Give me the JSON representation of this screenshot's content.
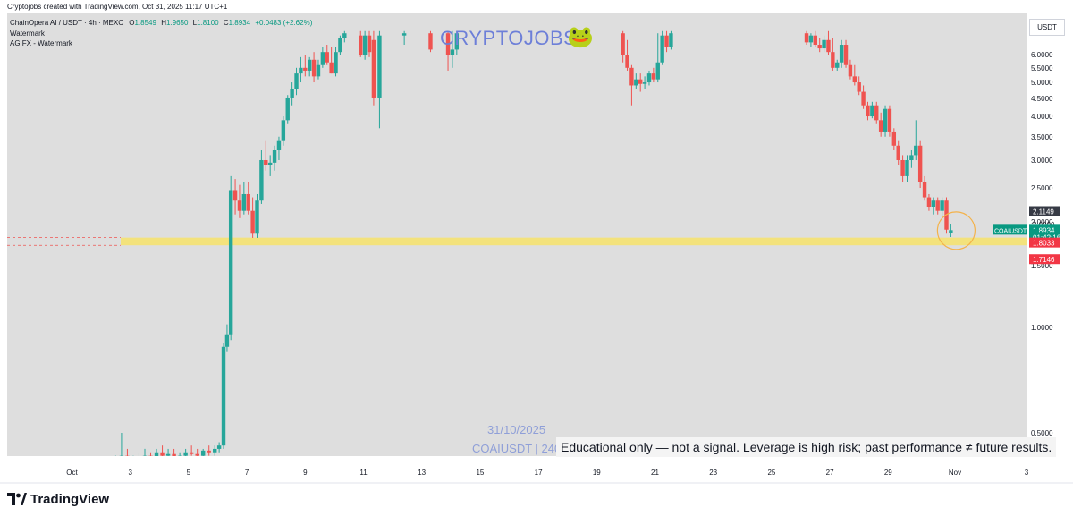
{
  "header": {
    "credit": "Cryptojobs created with TradingView.com, Oct 31, 2025 11:17 UTC+1",
    "symbol_line": "ChainOpera AI / USDT · 4h · MEXC",
    "ohlc": {
      "o_label": "O",
      "o": "1.8549",
      "h_label": "H",
      "h": "1.9650",
      "l_label": "L",
      "l": "1.8100",
      "c_label": "C",
      "c": "1.8934",
      "change": "+0.0483 (+2.62%)"
    },
    "indicator_1": "Watermark",
    "indicator_2": "AG FX - Watermark"
  },
  "watermark": {
    "text": "CRYPTOJOBS",
    "frog": "🐸",
    "date": "31/10/2025",
    "symbol": "COAIUSDT | 240"
  },
  "disclaimer": "Educational only — not a signal. Leverage is high risk; past performance ≠ future results.",
  "currency_button": "USDT",
  "brand": {
    "name": "TradingView",
    "icon": "tradingview-logo-icon"
  },
  "colors": {
    "up": "#26a69a",
    "down": "#ef5350",
    "zone": "#f7e36b",
    "panel": "#dedede",
    "marker": "#f4b24a",
    "price_tag": "#089981",
    "red_tag": "#f23645",
    "dark_tag": "#363a45"
  },
  "price_labels": [
    {
      "id": "high-label",
      "text": "2.1149",
      "value": 2.1149,
      "kind": "dark"
    },
    {
      "id": "line-label",
      "text": "2.0000",
      "value": 2.0,
      "kind": "plain"
    },
    {
      "id": "last-price",
      "text": "1.8934",
      "value": 1.8934,
      "kind": "green"
    },
    {
      "id": "countdown",
      "text": "01:42:16",
      "value": 1.8934,
      "kind": "green-sub"
    },
    {
      "id": "zone-top",
      "text": "1.8033",
      "value": 1.8033,
      "kind": "red"
    },
    {
      "id": "zone-bottom",
      "text": "1.7146",
      "value": 1.7146,
      "kind": "red"
    }
  ],
  "symbol_tag": "COAIUSDT",
  "chart_data": {
    "type": "candlestick",
    "title": "ChainOpera AI / USDT · 4h · MEXC",
    "interval": "4h",
    "y_axis": {
      "scale": "log",
      "ticks": [
        0.5,
        1.0,
        1.5,
        2.0,
        2.5,
        3.0,
        3.5,
        4.0,
        4.5,
        5.0,
        5.5,
        6.0
      ],
      "tick_labels": [
        "0.5000",
        "1.0000",
        "1.5000",
        "2.0000",
        "2.5000",
        "3.0000",
        "3.5000",
        "4.0000",
        "4.5000",
        "5.0000",
        "5.5000",
        "6.0000"
      ]
    },
    "x_axis": {
      "ticks": [
        {
          "day": 1,
          "label": "Oct"
        },
        {
          "day": 3,
          "label": "3"
        },
        {
          "day": 5,
          "label": "5"
        },
        {
          "day": 7,
          "label": "7"
        },
        {
          "day": 9,
          "label": "9"
        },
        {
          "day": 11,
          "label": "11"
        },
        {
          "day": 13,
          "label": "13"
        },
        {
          "day": 15,
          "label": "15"
        },
        {
          "day": 17,
          "label": "17"
        },
        {
          "day": 19,
          "label": "19"
        },
        {
          "day": 21,
          "label": "21"
        },
        {
          "day": 23,
          "label": "23"
        },
        {
          "day": 25,
          "label": "25"
        },
        {
          "day": 27,
          "label": "27"
        },
        {
          "day": 29,
          "label": "29"
        },
        {
          "day": 32,
          "label": "Nov"
        },
        {
          "day": 34,
          "label": "3"
        }
      ]
    },
    "support_zone": {
      "top": 1.8033,
      "bottom": 1.7146
    },
    "candles": [
      {
        "day": 1.65,
        "o": 0.37,
        "h": 0.39,
        "l": 0.35,
        "c": 0.38
      },
      {
        "day": 1.9,
        "o": 0.38,
        "h": 0.4,
        "l": 0.36,
        "c": 0.39
      },
      {
        "day": 2.1,
        "o": 0.39,
        "h": 0.41,
        "l": 0.37,
        "c": 0.38
      },
      {
        "day": 2.3,
        "o": 0.38,
        "h": 0.4,
        "l": 0.36,
        "c": 0.395
      },
      {
        "day": 2.5,
        "o": 0.395,
        "h": 0.43,
        "l": 0.38,
        "c": 0.42
      },
      {
        "day": 2.7,
        "o": 0.42,
        "h": 0.5,
        "l": 0.4,
        "c": 0.43
      },
      {
        "day": 2.9,
        "o": 0.43,
        "h": 0.45,
        "l": 0.4,
        "c": 0.41
      },
      {
        "day": 3.1,
        "o": 0.41,
        "h": 0.43,
        "l": 0.39,
        "c": 0.415
      },
      {
        "day": 3.3,
        "o": 0.415,
        "h": 0.44,
        "l": 0.4,
        "c": 0.425
      },
      {
        "day": 3.5,
        "o": 0.425,
        "h": 0.45,
        "l": 0.41,
        "c": 0.43
      },
      {
        "day": 3.7,
        "o": 0.43,
        "h": 0.44,
        "l": 0.4,
        "c": 0.42
      },
      {
        "day": 3.9,
        "o": 0.42,
        "h": 0.45,
        "l": 0.41,
        "c": 0.44
      },
      {
        "day": 4.1,
        "o": 0.44,
        "h": 0.46,
        "l": 0.42,
        "c": 0.43
      },
      {
        "day": 4.3,
        "o": 0.43,
        "h": 0.45,
        "l": 0.41,
        "c": 0.435
      },
      {
        "day": 4.5,
        "o": 0.435,
        "h": 0.45,
        "l": 0.42,
        "c": 0.425
      },
      {
        "day": 4.7,
        "o": 0.425,
        "h": 0.44,
        "l": 0.41,
        "c": 0.43
      },
      {
        "day": 4.9,
        "o": 0.43,
        "h": 0.45,
        "l": 0.42,
        "c": 0.44
      },
      {
        "day": 5.1,
        "o": 0.44,
        "h": 0.46,
        "l": 0.43,
        "c": 0.435
      },
      {
        "day": 5.3,
        "o": 0.435,
        "h": 0.45,
        "l": 0.42,
        "c": 0.43
      },
      {
        "day": 5.5,
        "o": 0.43,
        "h": 0.45,
        "l": 0.42,
        "c": 0.445
      },
      {
        "day": 5.7,
        "o": 0.445,
        "h": 0.46,
        "l": 0.43,
        "c": 0.44
      },
      {
        "day": 5.9,
        "o": 0.44,
        "h": 0.46,
        "l": 0.43,
        "c": 0.45
      },
      {
        "day": 6.05,
        "o": 0.45,
        "h": 0.47,
        "l": 0.44,
        "c": 0.46
      },
      {
        "day": 6.2,
        "o": 0.46,
        "h": 0.9,
        "l": 0.45,
        "c": 0.88
      },
      {
        "day": 6.32,
        "o": 0.88,
        "h": 1.02,
        "l": 0.85,
        "c": 0.95
      },
      {
        "day": 6.45,
        "o": 0.95,
        "h": 2.7,
        "l": 0.92,
        "c": 2.45
      },
      {
        "day": 6.6,
        "o": 2.45,
        "h": 2.65,
        "l": 2.1,
        "c": 2.3
      },
      {
        "day": 6.75,
        "o": 2.3,
        "h": 2.55,
        "l": 2.05,
        "c": 2.15
      },
      {
        "day": 6.9,
        "o": 2.15,
        "h": 2.6,
        "l": 2.1,
        "c": 2.4
      },
      {
        "day": 7.05,
        "o": 2.4,
        "h": 2.6,
        "l": 2.1,
        "c": 2.15
      },
      {
        "day": 7.2,
        "o": 2.15,
        "h": 2.35,
        "l": 1.8,
        "c": 1.85
      },
      {
        "day": 7.35,
        "o": 1.85,
        "h": 2.4,
        "l": 1.8,
        "c": 2.3
      },
      {
        "day": 7.5,
        "o": 2.3,
        "h": 3.2,
        "l": 2.25,
        "c": 3.0
      },
      {
        "day": 7.65,
        "o": 3.0,
        "h": 3.4,
        "l": 2.8,
        "c": 2.9
      },
      {
        "day": 7.8,
        "o": 2.9,
        "h": 3.1,
        "l": 2.7,
        "c": 2.95
      },
      {
        "day": 7.95,
        "o": 2.95,
        "h": 3.3,
        "l": 2.8,
        "c": 3.2
      },
      {
        "day": 8.1,
        "o": 3.2,
        "h": 3.5,
        "l": 3.0,
        "c": 3.4
      },
      {
        "day": 8.25,
        "o": 3.4,
        "h": 4.0,
        "l": 3.3,
        "c": 3.9
      },
      {
        "day": 8.4,
        "o": 3.9,
        "h": 4.6,
        "l": 3.8,
        "c": 4.5
      },
      {
        "day": 8.55,
        "o": 4.5,
        "h": 5.0,
        "l": 4.3,
        "c": 4.8
      },
      {
        "day": 8.7,
        "o": 4.8,
        "h": 5.5,
        "l": 4.6,
        "c": 5.3
      },
      {
        "day": 8.85,
        "o": 5.3,
        "h": 5.9,
        "l": 5.0,
        "c": 5.5
      },
      {
        "day": 9.0,
        "o": 5.5,
        "h": 6.0,
        "l": 5.2,
        "c": 5.4
      },
      {
        "day": 9.15,
        "o": 5.4,
        "h": 5.9,
        "l": 5.2,
        "c": 5.8
      },
      {
        "day": 9.3,
        "o": 5.8,
        "h": 6.1,
        "l": 5.0,
        "c": 5.2
      },
      {
        "day": 9.45,
        "o": 5.2,
        "h": 5.8,
        "l": 5.1,
        "c": 5.6
      },
      {
        "day": 9.6,
        "o": 5.6,
        "h": 6.3,
        "l": 5.5,
        "c": 6.1
      },
      {
        "day": 9.75,
        "o": 6.1,
        "h": 6.4,
        "l": 5.6,
        "c": 5.7
      },
      {
        "day": 9.9,
        "o": 5.7,
        "h": 6.3,
        "l": 5.3,
        "c": 5.3
      },
      {
        "day": 10.05,
        "o": 5.3,
        "h": 6.3,
        "l": 5.2,
        "c": 6.1
      },
      {
        "day": 10.2,
        "o": 6.1,
        "h": 6.8,
        "l": 6.0,
        "c": 6.7
      },
      {
        "day": 10.35,
        "o": 6.7,
        "h": 7.0,
        "l": 6.5,
        "c": 6.9
      },
      {
        "day": 10.9,
        "o": 6.8,
        "h": 7.0,
        "l": 5.9,
        "c": 6.0
      },
      {
        "day": 11.05,
        "o": 6.0,
        "h": 7.0,
        "l": 5.8,
        "c": 6.8
      },
      {
        "day": 11.2,
        "o": 6.8,
        "h": 7.0,
        "l": 5.9,
        "c": 6.1
      },
      {
        "day": 11.35,
        "o": 6.6,
        "h": 7.0,
        "l": 4.3,
        "c": 4.5
      },
      {
        "day": 11.55,
        "o": 4.5,
        "h": 7.0,
        "l": 3.7,
        "c": 6.8
      },
      {
        "day": 12.4,
        "o": 6.8,
        "h": 7.0,
        "l": 6.4,
        "c": 6.9
      },
      {
        "day": 13.3,
        "o": 6.9,
        "h": 7.0,
        "l": 6.1,
        "c": 6.2
      },
      {
        "day": 13.9,
        "o": 6.9,
        "h": 7.0,
        "l": 5.4,
        "c": 6.0
      },
      {
        "day": 14.05,
        "o": 6.0,
        "h": 7.0,
        "l": 5.5,
        "c": 6.2
      },
      {
        "day": 14.2,
        "o": 6.2,
        "h": 7.0,
        "l": 6.0,
        "c": 6.9
      },
      {
        "day": 19.9,
        "o": 6.9,
        "h": 7.0,
        "l": 5.7,
        "c": 6.0
      },
      {
        "day": 20.05,
        "o": 6.0,
        "h": 6.6,
        "l": 5.4,
        "c": 5.5
      },
      {
        "day": 20.2,
        "o": 5.5,
        "h": 5.6,
        "l": 4.3,
        "c": 4.9
      },
      {
        "day": 20.35,
        "o": 4.9,
        "h": 5.3,
        "l": 4.8,
        "c": 5.1
      },
      {
        "day": 20.5,
        "o": 5.1,
        "h": 5.3,
        "l": 4.7,
        "c": 4.95
      },
      {
        "day": 20.65,
        "o": 4.95,
        "h": 5.2,
        "l": 4.8,
        "c": 5.0
      },
      {
        "day": 20.8,
        "o": 5.0,
        "h": 5.4,
        "l": 4.9,
        "c": 5.3
      },
      {
        "day": 20.95,
        "o": 5.3,
        "h": 5.5,
        "l": 5.0,
        "c": 5.1
      },
      {
        "day": 21.1,
        "o": 5.1,
        "h": 6.9,
        "l": 5.0,
        "c": 5.7
      },
      {
        "day": 21.25,
        "o": 5.7,
        "h": 7.0,
        "l": 5.6,
        "c": 6.8
      },
      {
        "day": 21.4,
        "o": 6.8,
        "h": 7.0,
        "l": 6.1,
        "c": 6.3
      },
      {
        "day": 21.55,
        "o": 6.3,
        "h": 7.0,
        "l": 6.2,
        "c": 6.9
      },
      {
        "day": 26.2,
        "o": 6.9,
        "h": 7.0,
        "l": 6.4,
        "c": 6.5
      },
      {
        "day": 26.35,
        "o": 6.5,
        "h": 6.9,
        "l": 6.3,
        "c": 6.8
      },
      {
        "day": 26.5,
        "o": 6.8,
        "h": 7.0,
        "l": 6.3,
        "c": 6.4
      },
      {
        "day": 26.65,
        "o": 6.4,
        "h": 6.7,
        "l": 6.1,
        "c": 6.25
      },
      {
        "day": 26.8,
        "o": 6.25,
        "h": 6.8,
        "l": 6.1,
        "c": 6.6
      },
      {
        "day": 26.95,
        "o": 6.6,
        "h": 7.0,
        "l": 6.0,
        "c": 6.1
      },
      {
        "day": 27.1,
        "o": 6.1,
        "h": 6.7,
        "l": 5.4,
        "c": 5.5
      },
      {
        "day": 27.25,
        "o": 5.5,
        "h": 5.8,
        "l": 5.4,
        "c": 5.7
      },
      {
        "day": 27.4,
        "o": 5.7,
        "h": 6.6,
        "l": 5.5,
        "c": 6.4
      },
      {
        "day": 27.55,
        "o": 6.4,
        "h": 6.6,
        "l": 5.5,
        "c": 5.6
      },
      {
        "day": 27.7,
        "o": 5.6,
        "h": 5.8,
        "l": 5.1,
        "c": 5.2
      },
      {
        "day": 27.85,
        "o": 5.2,
        "h": 5.6,
        "l": 4.9,
        "c": 5.0
      },
      {
        "day": 28.0,
        "o": 5.0,
        "h": 5.2,
        "l": 4.6,
        "c": 4.7
      },
      {
        "day": 28.15,
        "o": 4.7,
        "h": 4.9,
        "l": 4.2,
        "c": 4.3
      },
      {
        "day": 28.3,
        "o": 4.3,
        "h": 4.4,
        "l": 3.9,
        "c": 4.0
      },
      {
        "day": 28.45,
        "o": 4.0,
        "h": 4.4,
        "l": 3.95,
        "c": 4.3
      },
      {
        "day": 28.6,
        "o": 4.3,
        "h": 4.4,
        "l": 3.8,
        "c": 3.9
      },
      {
        "day": 28.75,
        "o": 3.9,
        "h": 4.1,
        "l": 3.5,
        "c": 3.6
      },
      {
        "day": 28.9,
        "o": 3.6,
        "h": 4.3,
        "l": 3.5,
        "c": 4.2
      },
      {
        "day": 29.05,
        "o": 4.2,
        "h": 4.3,
        "l": 3.5,
        "c": 3.6
      },
      {
        "day": 29.2,
        "o": 3.6,
        "h": 3.7,
        "l": 3.2,
        "c": 3.3
      },
      {
        "day": 29.35,
        "o": 3.3,
        "h": 3.4,
        "l": 2.9,
        "c": 3.0
      },
      {
        "day": 29.5,
        "o": 3.0,
        "h": 3.1,
        "l": 2.6,
        "c": 2.7
      },
      {
        "day": 29.65,
        "o": 2.7,
        "h": 3.1,
        "l": 2.6,
        "c": 3.0
      },
      {
        "day": 29.8,
        "o": 3.0,
        "h": 3.2,
        "l": 2.85,
        "c": 3.1
      },
      {
        "day": 29.95,
        "o": 3.1,
        "h": 3.9,
        "l": 3.0,
        "c": 3.3
      },
      {
        "day": 30.1,
        "o": 3.3,
        "h": 3.4,
        "l": 2.5,
        "c": 2.6
      },
      {
        "day": 30.25,
        "o": 2.6,
        "h": 2.7,
        "l": 2.3,
        "c": 2.35
      },
      {
        "day": 30.4,
        "o": 2.35,
        "h": 2.4,
        "l": 2.15,
        "c": 2.2
      },
      {
        "day": 30.55,
        "o": 2.2,
        "h": 2.35,
        "l": 2.1,
        "c": 2.3
      },
      {
        "day": 30.7,
        "o": 2.3,
        "h": 2.35,
        "l": 2.1,
        "c": 2.15
      },
      {
        "day": 30.85,
        "o": 2.15,
        "h": 2.35,
        "l": 2.05,
        "c": 2.3
      },
      {
        "day": 31.0,
        "o": 2.3,
        "h": 2.35,
        "l": 1.85,
        "c": 1.9
      },
      {
        "day": 31.15,
        "o": 1.8549,
        "h": 1.965,
        "l": 1.81,
        "c": 1.8934
      }
    ]
  }
}
